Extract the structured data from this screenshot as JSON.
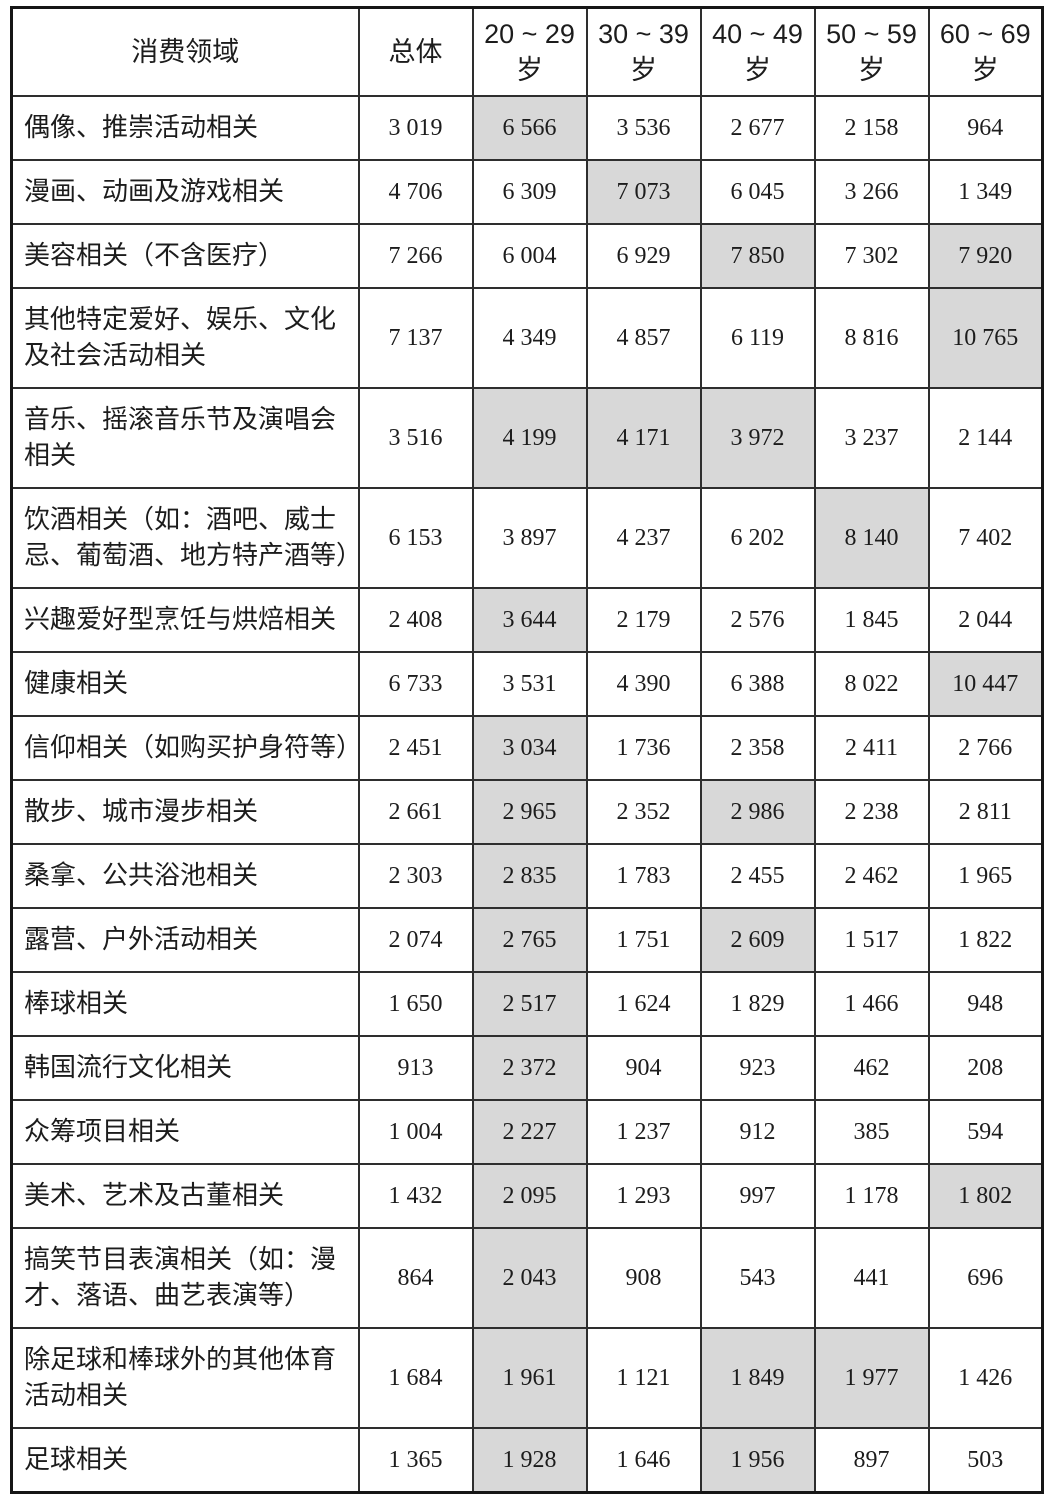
{
  "chart_data": {
    "type": "table",
    "title": "",
    "header": {
      "field": "消费领域",
      "overall": "总体",
      "age_groups": [
        {
          "range": "20 ~ 29",
          "suffix": "岁"
        },
        {
          "range": "30 ~ 39",
          "suffix": "岁"
        },
        {
          "range": "40 ~ 49",
          "suffix": "岁"
        },
        {
          "range": "50 ~ 59",
          "suffix": "岁"
        },
        {
          "range": "60 ~ 69",
          "suffix": "岁"
        }
      ]
    },
    "value_columns": [
      "总体",
      "20 ~ 29 岁",
      "30 ~ 39 岁",
      "40 ~ 49 岁",
      "50 ~ 59 岁",
      "60 ~ 69 岁"
    ],
    "number_format": "space thousands separator, e.g. 3 019",
    "rows": [
      {
        "label": "偶像、推崇活动相关",
        "values": [
          3019,
          6566,
          3536,
          2677,
          2158,
          964
        ],
        "shaded": [
          1
        ]
      },
      {
        "label": "漫画、动画及游戏相关",
        "values": [
          4706,
          6309,
          7073,
          6045,
          3266,
          1349
        ],
        "shaded": [
          2
        ]
      },
      {
        "label": "美容相关（不含医疗）",
        "values": [
          7266,
          6004,
          6929,
          7850,
          7302,
          7920
        ],
        "shaded": [
          3,
          5
        ]
      },
      {
        "label": "其他特定爱好、娱乐、文化及社会活动相关",
        "values": [
          7137,
          4349,
          4857,
          6119,
          8816,
          10765
        ],
        "shaded": [
          5
        ]
      },
      {
        "label": "音乐、摇滚音乐节及演唱会相关",
        "values": [
          3516,
          4199,
          4171,
          3972,
          3237,
          2144
        ],
        "shaded": [
          1,
          2,
          3
        ]
      },
      {
        "label": "饮酒相关（如：酒吧、威士忌、葡萄酒、地方特产酒等）",
        "values": [
          6153,
          3897,
          4237,
          6202,
          8140,
          7402
        ],
        "shaded": [
          4
        ]
      },
      {
        "label": "兴趣爱好型烹饪与烘焙相关",
        "values": [
          2408,
          3644,
          2179,
          2576,
          1845,
          2044
        ],
        "shaded": [
          1
        ]
      },
      {
        "label": "健康相关",
        "values": [
          6733,
          3531,
          4390,
          6388,
          8022,
          10447
        ],
        "shaded": [
          5
        ]
      },
      {
        "label": "信仰相关（如购买护身符等）",
        "values": [
          2451,
          3034,
          1736,
          2358,
          2411,
          2766
        ],
        "shaded": [
          1
        ]
      },
      {
        "label": "散步、城市漫步相关",
        "values": [
          2661,
          2965,
          2352,
          2986,
          2238,
          2811
        ],
        "shaded": [
          1,
          3
        ]
      },
      {
        "label": "桑拿、公共浴池相关",
        "values": [
          2303,
          2835,
          1783,
          2455,
          2462,
          1965
        ],
        "shaded": [
          1
        ]
      },
      {
        "label": "露营、户外活动相关",
        "values": [
          2074,
          2765,
          1751,
          2609,
          1517,
          1822
        ],
        "shaded": [
          1,
          3
        ]
      },
      {
        "label": "棒球相关",
        "values": [
          1650,
          2517,
          1624,
          1829,
          1466,
          948
        ],
        "shaded": [
          1
        ]
      },
      {
        "label": "韩国流行文化相关",
        "values": [
          913,
          2372,
          904,
          923,
          462,
          208
        ],
        "shaded": [
          1
        ]
      },
      {
        "label": "众筹项目相关",
        "values": [
          1004,
          2227,
          1237,
          912,
          385,
          594
        ],
        "shaded": [
          1
        ]
      },
      {
        "label": "美术、艺术及古董相关",
        "values": [
          1432,
          2095,
          1293,
          997,
          1178,
          1802
        ],
        "shaded": [
          1,
          5
        ]
      },
      {
        "label": "搞笑节目表演相关（如：漫才、落语、曲艺表演等）",
        "values": [
          864,
          2043,
          908,
          543,
          441,
          696
        ],
        "shaded": [
          1
        ]
      },
      {
        "label": "除足球和棒球外的其他体育活动相关",
        "values": [
          1684,
          1961,
          1121,
          1849,
          1977,
          1426
        ],
        "shaded": [
          1,
          3,
          4
        ]
      },
      {
        "label": "足球相关",
        "values": [
          1365,
          1928,
          1646,
          1956,
          897,
          503
        ],
        "shaded": [
          1,
          3
        ]
      }
    ]
  },
  "colors": {
    "highlight_cell": "#d8d8d8",
    "border_outer": "#161616",
    "border_inner": "#2e2e2e",
    "text": "#1c1c1c",
    "background": "#ffffff"
  }
}
